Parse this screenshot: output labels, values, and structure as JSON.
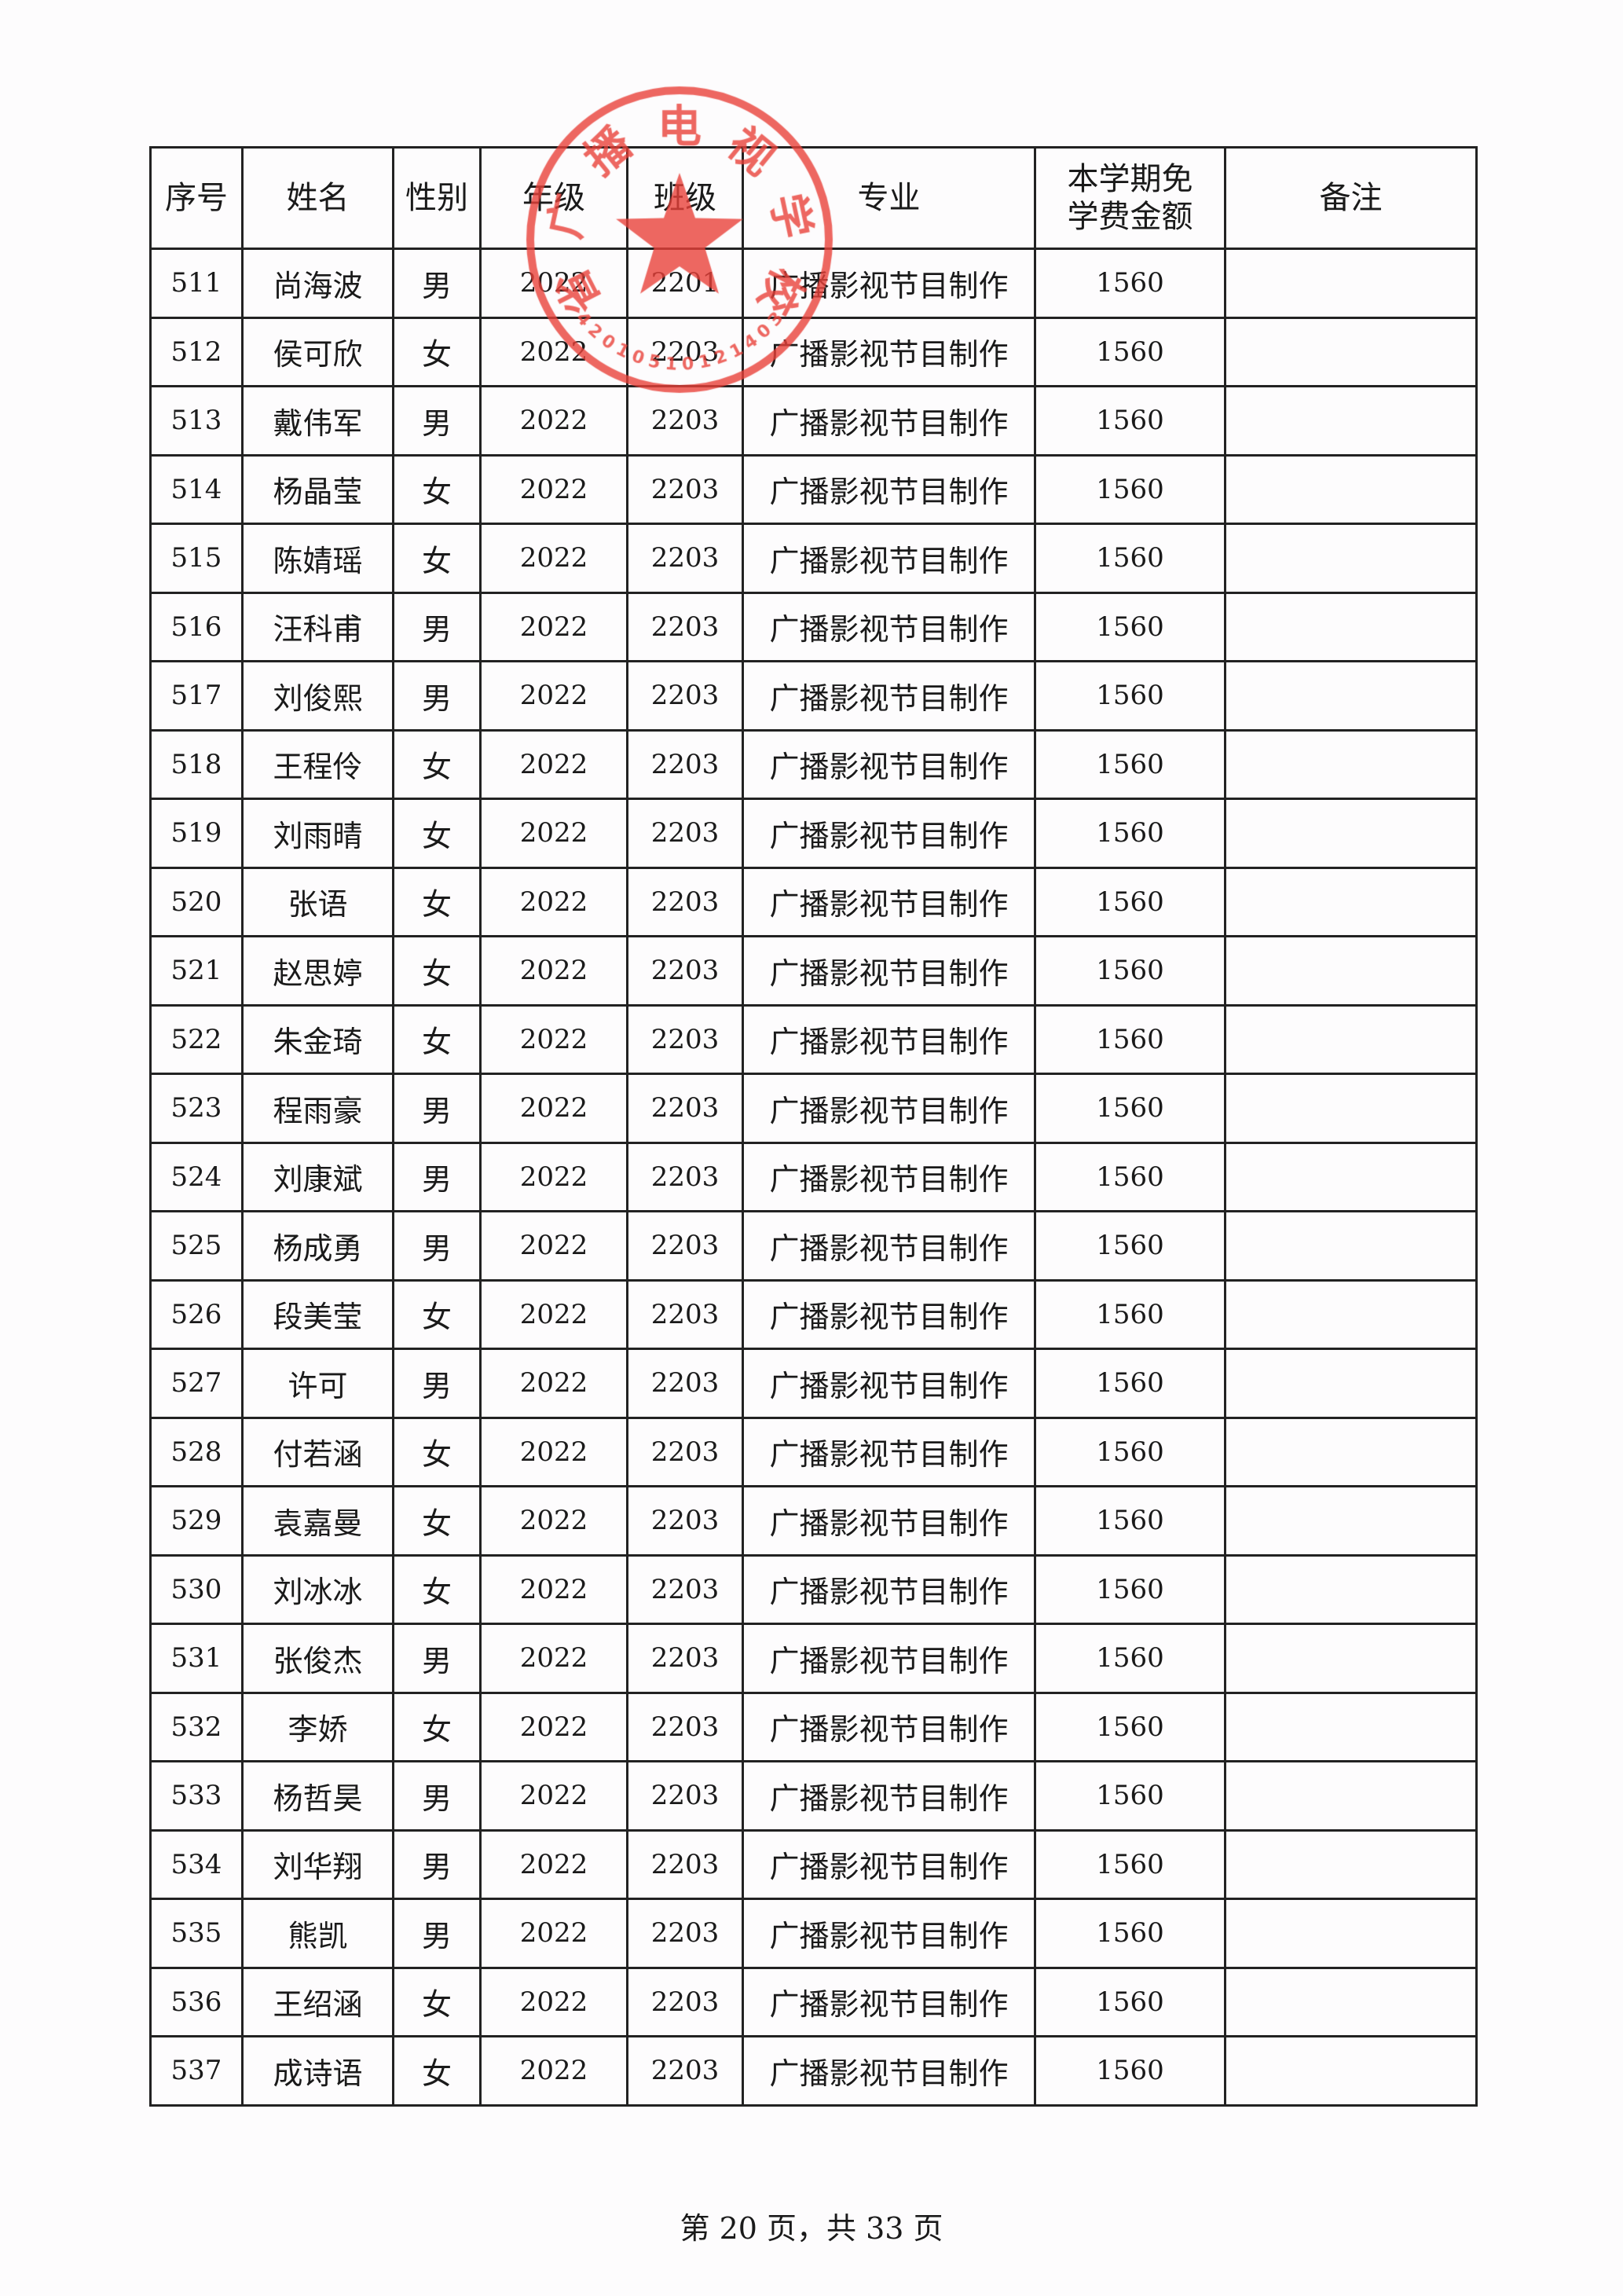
{
  "table": {
    "headers": [
      "序号",
      "姓名",
      "性别",
      "年级",
      "班级",
      "专业",
      "本学期免学费金额",
      "备注"
    ],
    "rows": [
      [
        "511",
        "尚海波",
        "男",
        "2022",
        "2201",
        "广播影视节目制作",
        "1560",
        ""
      ],
      [
        "512",
        "侯可欣",
        "女",
        "2022",
        "2203",
        "广播影视节目制作",
        "1560",
        ""
      ],
      [
        "513",
        "戴伟军",
        "男",
        "2022",
        "2203",
        "广播影视节目制作",
        "1560",
        ""
      ],
      [
        "514",
        "杨晶莹",
        "女",
        "2022",
        "2203",
        "广播影视节目制作",
        "1560",
        ""
      ],
      [
        "515",
        "陈婧瑶",
        "女",
        "2022",
        "2203",
        "广播影视节目制作",
        "1560",
        ""
      ],
      [
        "516",
        "汪科甫",
        "男",
        "2022",
        "2203",
        "广播影视节目制作",
        "1560",
        ""
      ],
      [
        "517",
        "刘俊熙",
        "男",
        "2022",
        "2203",
        "广播影视节目制作",
        "1560",
        ""
      ],
      [
        "518",
        "王程伶",
        "女",
        "2022",
        "2203",
        "广播影视节目制作",
        "1560",
        ""
      ],
      [
        "519",
        "刘雨晴",
        "女",
        "2022",
        "2203",
        "广播影视节目制作",
        "1560",
        ""
      ],
      [
        "520",
        "张语",
        "女",
        "2022",
        "2203",
        "广播影视节目制作",
        "1560",
        ""
      ],
      [
        "521",
        "赵思婷",
        "女",
        "2022",
        "2203",
        "广播影视节目制作",
        "1560",
        ""
      ],
      [
        "522",
        "朱金琦",
        "女",
        "2022",
        "2203",
        "广播影视节目制作",
        "1560",
        ""
      ],
      [
        "523",
        "程雨豪",
        "男",
        "2022",
        "2203",
        "广播影视节目制作",
        "1560",
        ""
      ],
      [
        "524",
        "刘康斌",
        "男",
        "2022",
        "2203",
        "广播影视节目制作",
        "1560",
        ""
      ],
      [
        "525",
        "杨成勇",
        "男",
        "2022",
        "2203",
        "广播影视节目制作",
        "1560",
        ""
      ],
      [
        "526",
        "段美莹",
        "女",
        "2022",
        "2203",
        "广播影视节目制作",
        "1560",
        ""
      ],
      [
        "527",
        "许可",
        "男",
        "2022",
        "2203",
        "广播影视节目制作",
        "1560",
        ""
      ],
      [
        "528",
        "付若涵",
        "女",
        "2022",
        "2203",
        "广播影视节目制作",
        "1560",
        ""
      ],
      [
        "529",
        "袁嘉曼",
        "女",
        "2022",
        "2203",
        "广播影视节目制作",
        "1560",
        ""
      ],
      [
        "530",
        "刘冰冰",
        "女",
        "2022",
        "2203",
        "广播影视节目制作",
        "1560",
        ""
      ],
      [
        "531",
        "张俊杰",
        "男",
        "2022",
        "2203",
        "广播影视节目制作",
        "1560",
        ""
      ],
      [
        "532",
        "李娇",
        "女",
        "2022",
        "2203",
        "广播影视节目制作",
        "1560",
        ""
      ],
      [
        "533",
        "杨哲昊",
        "男",
        "2022",
        "2203",
        "广播影视节目制作",
        "1560",
        ""
      ],
      [
        "534",
        "刘华翔",
        "男",
        "2022",
        "2203",
        "广播影视节目制作",
        "1560",
        ""
      ],
      [
        "535",
        "熊凯",
        "男",
        "2022",
        "2203",
        "广播影视节目制作",
        "1560",
        ""
      ],
      [
        "536",
        "王绍涵",
        "女",
        "2022",
        "2203",
        "广播影视节目制作",
        "1560",
        ""
      ],
      [
        "537",
        "成诗语",
        "女",
        "2022",
        "2203",
        "广播影视节目制作",
        "1560",
        ""
      ]
    ]
  },
  "stamp": {
    "text": "省广播电视学校",
    "code": "4201051012140З",
    "color": "#e8413a"
  },
  "footer": {
    "page_text": "第 20 页，共 33 页"
  }
}
